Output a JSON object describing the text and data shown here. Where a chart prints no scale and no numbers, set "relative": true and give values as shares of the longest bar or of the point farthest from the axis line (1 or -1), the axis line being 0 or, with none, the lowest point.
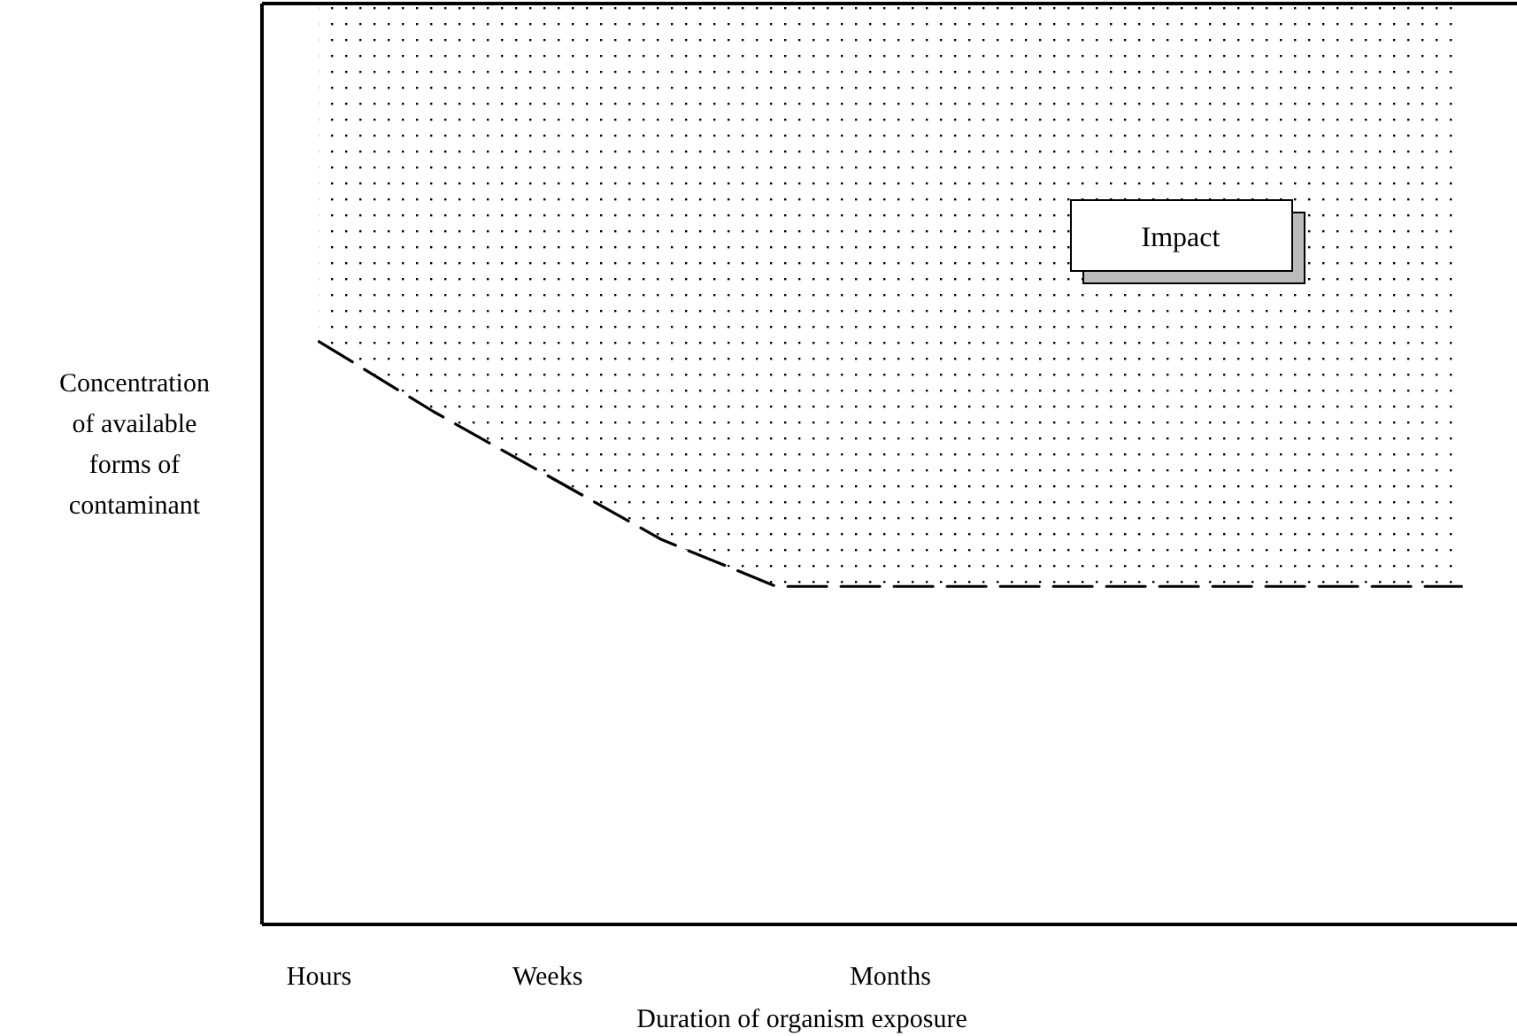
{
  "chart_data": {
    "type": "line",
    "relative": true,
    "xlabel": "Duration of organism exposure",
    "ylabel": "Concentration of available forms of contaminant",
    "annotations": [
      "Impact"
    ],
    "line_style": "dashed",
    "tick_labels": "x",
    "categories": [
      "Hours",
      null,
      "Weeks",
      null,
      null,
      "Months",
      null,
      null,
      null,
      null,
      null
    ],
    "series": [
      {
        "color": "#000000",
        "values": [
          1,
          0.88,
          0.77,
          0.66,
          0.58,
          0.58,
          0.58,
          0.58,
          0.58,
          0.58,
          0.58
        ]
      }
    ]
  }
}
